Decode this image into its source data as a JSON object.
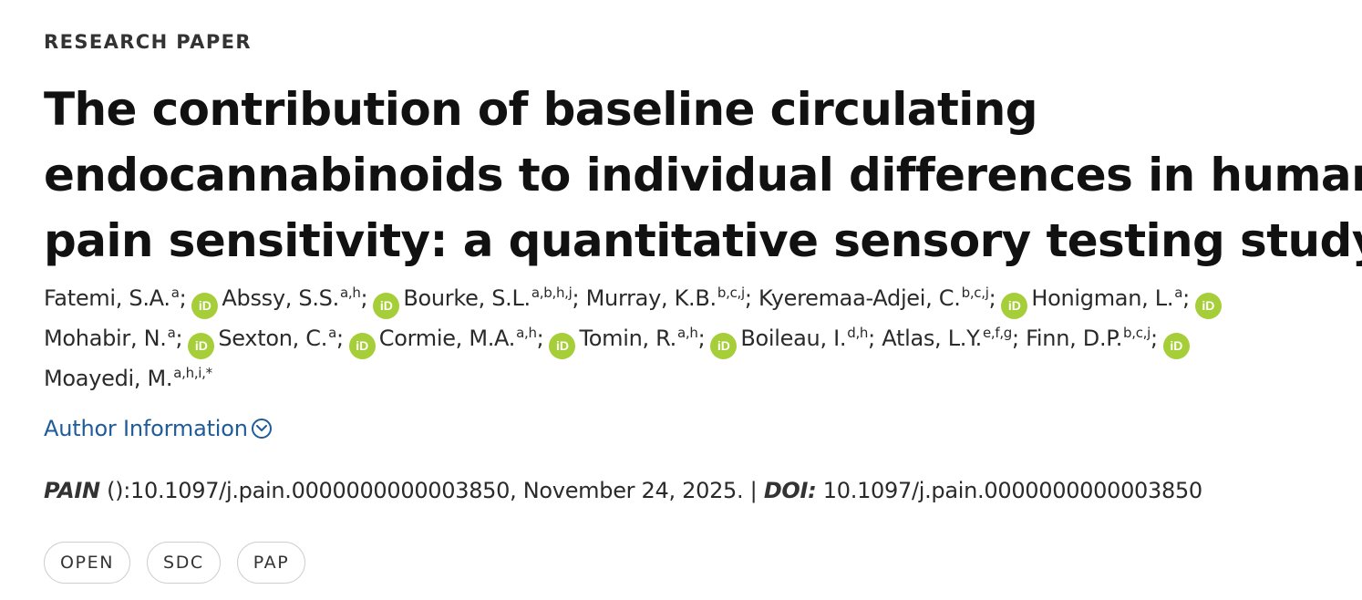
{
  "article_type": "RESEARCH PAPER",
  "title_lines": [
    "The contribution of baseline circulating",
    "endocannabinoids to individual differences in human",
    "pain sensitivity: a quantitative sensory testing study"
  ],
  "authors": [
    {
      "name": "Fatemi, S.A.",
      "sup": "a",
      "sep": ";",
      "orcid_after": true
    },
    {
      "name": "Abssy, S.S.",
      "sup": "a,h",
      "sep": ";",
      "orcid_after": true
    },
    {
      "name": "Bourke, S.L.",
      "sup": "a,b,h,j",
      "sep": ";",
      "orcid_after": false
    },
    {
      "name": "Murray, K.B.",
      "sup": "b,c,j",
      "sep": ";",
      "orcid_after": false
    },
    {
      "name": "Kyeremaa-Adjei, C.",
      "sup": "b,c,j",
      "sep": ";",
      "orcid_after": true
    },
    {
      "name": "Honigman, L.",
      "sup": "a",
      "sep": ";",
      "orcid_after": true
    },
    {
      "name": "Mohabir, N.",
      "sup": "a",
      "sep": ";",
      "orcid_after": true
    },
    {
      "name": "Sexton, C.",
      "sup": "a",
      "sep": ";",
      "orcid_after": true
    },
    {
      "name": "Cormie, M.A.",
      "sup": "a,h",
      "sep": ";",
      "orcid_after": true
    },
    {
      "name": "Tomin, R.",
      "sup": "a,h",
      "sep": ";",
      "orcid_after": true
    },
    {
      "name": "Boileau, I.",
      "sup": "d,h",
      "sep": ";",
      "orcid_after": false
    },
    {
      "name": "Atlas, L.Y.",
      "sup": "e,f,g",
      "sep": ";",
      "orcid_after": false
    },
    {
      "name": "Finn, D.P.",
      "sup": "b,c,j",
      "sep": ";",
      "orcid_after": true
    },
    {
      "name": "Moayedi, M.",
      "sup": "a,h,i,*",
      "sep": "",
      "orcid_after": false
    }
  ],
  "author_info_link": "Author Information",
  "citation": {
    "journal": "PAIN",
    "details": " ():10.1097/j.pain.0000000000003850, November 24, 2025. | ",
    "doi_label": "DOI:",
    "doi_value": " 10.1097/j.pain.0000000000003850"
  },
  "badges": [
    "OPEN",
    "SDC",
    "PAP"
  ],
  "colors": {
    "orcid_green": "#a6ce39",
    "link_blue": "#1f5c99",
    "badge_border": "#cfcfcf"
  }
}
